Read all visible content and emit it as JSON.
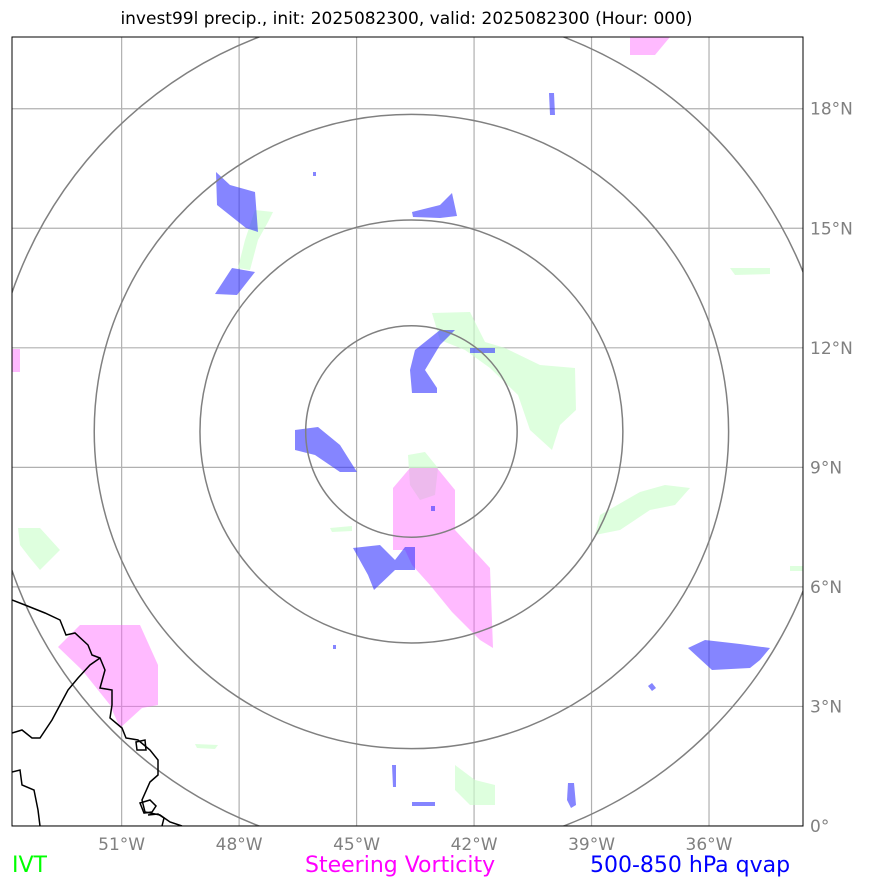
{
  "title": "invest99l precip., init: 2025082300, valid: 2025082300 (Hour: 000)",
  "map": {
    "lon_range": [
      -53.8,
      -33.6
    ],
    "lat_range": [
      0.0,
      19.8
    ],
    "center": {
      "lon": -43.6,
      "lat": 9.9
    },
    "range_rings_deg": [
      2.7,
      5.4,
      8.1,
      10.8
    ],
    "x_ticks": [
      {
        "lon": -51,
        "label": "51°W"
      },
      {
        "lon": -48,
        "label": "48°W"
      },
      {
        "lon": -45,
        "label": "45°W"
      },
      {
        "lon": -42,
        "label": "42°W"
      },
      {
        "lon": -39,
        "label": "39°W"
      },
      {
        "lon": -36,
        "label": "36°W"
      }
    ],
    "y_ticks": [
      {
        "lat": 0,
        "label": "0°"
      },
      {
        "lat": 3,
        "label": "3°N"
      },
      {
        "lat": 6,
        "label": "6°N"
      },
      {
        "lat": 9,
        "label": "9°N"
      },
      {
        "lat": 12,
        "label": "12°N"
      },
      {
        "lat": 15,
        "label": "15°N"
      },
      {
        "lat": 18,
        "label": "18°N"
      }
    ],
    "colors": {
      "ivt": "#00ff00",
      "vorticity": "#ff00ff",
      "qvap": "#0000ff",
      "grid": "#b0b0b0",
      "rings": "#808080",
      "coast": "#000000"
    }
  },
  "legend": {
    "ivt": "IVT",
    "vorticity": "Steering Vorticity",
    "qvap": "500-850 hPa qvap"
  }
}
